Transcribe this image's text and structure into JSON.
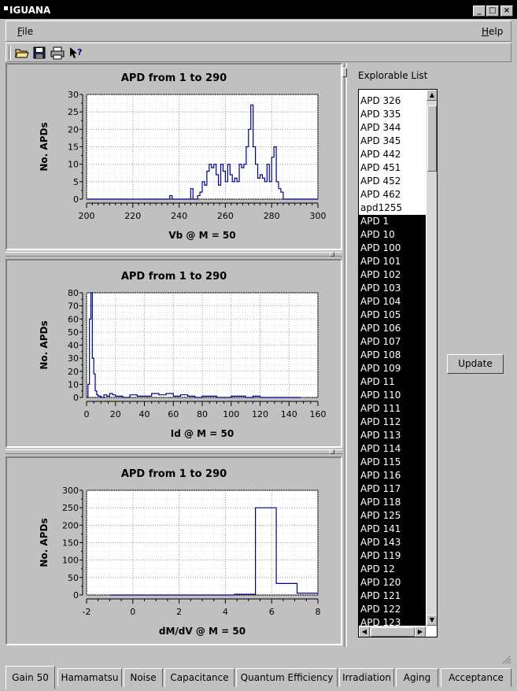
{
  "window": {
    "title": "IGUANA"
  },
  "menu": {
    "file": "File",
    "help": "Help"
  },
  "toolbar": [
    "open-folder-icon",
    "save-icon",
    "print-icon",
    "context-help-icon"
  ],
  "charts": [
    {
      "title": "APD from 1 to 290",
      "xlabel": "Vb @ M = 50",
      "ylabel": "No. APDs",
      "xlim": [
        200,
        300
      ],
      "ylim": [
        0,
        30
      ],
      "xticks": [
        200,
        220,
        240,
        260,
        280,
        300
      ],
      "yticks": [
        0,
        5,
        10,
        15,
        20,
        25,
        30
      ],
      "xminor": 2.5,
      "yminor": 2.5
    },
    {
      "title": "APD from 1 to 290",
      "xlabel": "Id @ M = 50",
      "ylabel": "No. APDs",
      "xlim": [
        0,
        160
      ],
      "ylim": [
        0,
        80
      ],
      "xticks": [
        0,
        20,
        40,
        60,
        80,
        100,
        120,
        140,
        160
      ],
      "yticks": [
        0,
        10,
        20,
        30,
        40,
        50,
        60,
        70,
        80
      ],
      "xminor": 5,
      "yminor": 5
    },
    {
      "title": "APD from 1 to 290",
      "xlabel": "dM/dV @ M = 50",
      "ylabel": "No. APDs",
      "xlim": [
        -2,
        8
      ],
      "ylim": [
        0,
        300
      ],
      "xticks": [
        -2,
        0,
        2,
        4,
        6,
        8
      ],
      "yticks": [
        0,
        50,
        100,
        150,
        200,
        250,
        300
      ],
      "xminor": 0.5,
      "yminor": 25
    }
  ],
  "chart_data": [
    {
      "type": "line",
      "title": "APD from 1 to 290",
      "xlabel": "Vb @ M = 50",
      "ylabel": "No. APDs",
      "xlim": [
        200,
        300
      ],
      "ylim": [
        0,
        30
      ],
      "x": [
        200,
        236,
        237,
        245,
        246,
        248,
        249,
        250,
        251,
        252,
        253,
        254,
        255,
        256,
        257,
        258,
        259,
        260,
        261,
        262,
        263,
        264,
        265,
        266,
        267,
        268,
        269,
        270,
        271,
        272,
        273,
        274,
        275,
        276,
        277,
        278,
        279,
        280,
        281,
        282,
        283,
        284,
        285,
        300
      ],
      "y": [
        0,
        1,
        0,
        3,
        0,
        1,
        2,
        5,
        4,
        8,
        10,
        9,
        10,
        7,
        4,
        10,
        8,
        5,
        10,
        7,
        5,
        6,
        5,
        10,
        9,
        10,
        15,
        20,
        27,
        15,
        10,
        6,
        7,
        6,
        5,
        10,
        5,
        12,
        15,
        5,
        3,
        2,
        0,
        0
      ]
    },
    {
      "type": "line",
      "title": "APD from 1 to 290",
      "xlabel": "Id @ M = 50",
      "ylabel": "No. APDs",
      "xlim": [
        0,
        160
      ],
      "ylim": [
        0,
        80
      ],
      "x": [
        0,
        1,
        2,
        3,
        4,
        5,
        6,
        7,
        8,
        10,
        12,
        14,
        16,
        18,
        20,
        25,
        30,
        35,
        40,
        45,
        50,
        55,
        60,
        65,
        70,
        75,
        80,
        90,
        100,
        110,
        115,
        120,
        130,
        140,
        148
      ],
      "y": [
        0,
        10,
        60,
        80,
        30,
        18,
        5,
        2,
        1,
        0,
        2,
        1,
        3,
        2,
        1,
        0,
        2,
        1,
        1,
        3,
        2,
        3,
        1,
        2,
        1,
        0,
        1,
        0,
        1,
        0,
        1,
        0,
        0,
        0,
        0
      ]
    },
    {
      "type": "line",
      "title": "APD from 1 to 290",
      "xlabel": "dM/dV @ M = 50",
      "ylabel": "No. APDs",
      "xlim": [
        -2,
        8
      ],
      "ylim": [
        0,
        300
      ],
      "x": [
        -1,
        4.4,
        5.3,
        6.2,
        7.1,
        8
      ],
      "y": [
        0,
        2,
        250,
        33,
        5,
        5
      ]
    }
  ],
  "sidebar": {
    "label": "Explorable List",
    "update_label": "Update",
    "items_unselected": [
      "APD 326",
      "APD 335",
      "APD 344",
      "APD 345",
      "APD 442",
      "APD 451",
      "APD 452",
      "APD 462",
      "apd1255"
    ],
    "items_selected": [
      "APD 1",
      "APD 10",
      "APD 100",
      "APD 101",
      "APD 102",
      "APD 103",
      "APD 104",
      "APD 105",
      "APD 106",
      "APD 107",
      "APD 108",
      "APD 109",
      "APD 11",
      "APD 110",
      "APD 111",
      "APD 112",
      "APD 113",
      "APD 114",
      "APD 115",
      "APD 116",
      "APD 117",
      "APD 118",
      "APD 125",
      "APD 141",
      "APD 143",
      "APD 119",
      "APD 12",
      "APD 120",
      "APD 121",
      "APD 122",
      "APD 123"
    ]
  },
  "tabs": [
    "Gain 50",
    "Hamamatsu",
    "Noise",
    "Capacitance",
    "Quantum Efficiency",
    "Irradiation",
    "Aging",
    "Acceptance"
  ],
  "colors": {
    "plot_line": "#000080",
    "grid": "#888888",
    "selection": "#000000"
  }
}
